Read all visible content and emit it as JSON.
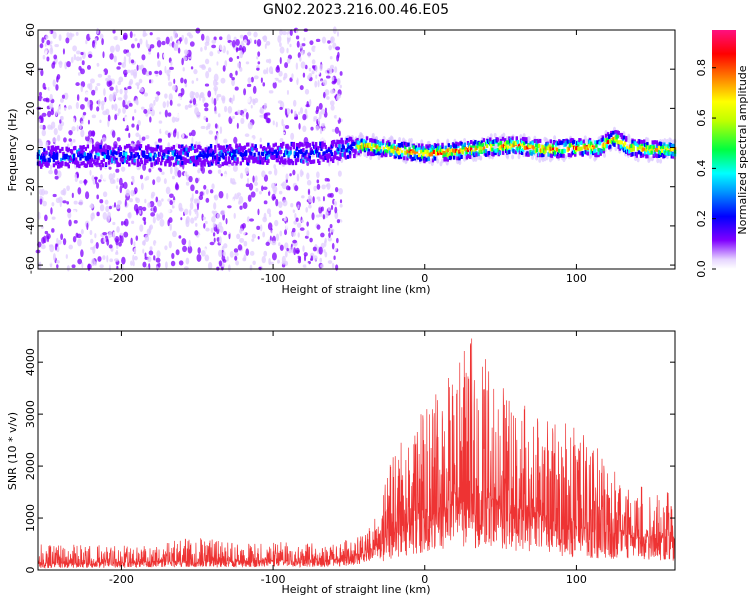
{
  "title": "GN02.2023.216.00.46.E05",
  "chart_data": [
    {
      "type": "heatmap",
      "xlabel": "Height of straight line (km)",
      "ylabel": "Frequency (Hz)",
      "xlim": [
        -255,
        165
      ],
      "ylim": [
        -62,
        60
      ],
      "x_ticks": [
        -200,
        -100,
        0,
        100
      ],
      "x_tick_labels": [
        "-200",
        "-100",
        "0",
        "100"
      ],
      "y_ticks": [
        -60,
        -40,
        -20,
        0,
        20,
        40,
        60
      ],
      "y_tick_labels": [
        "-60",
        "-40",
        "-20",
        "0",
        "20",
        "40",
        "60"
      ],
      "colorbar": {
        "label": "Normalized spectral amplitude",
        "range": [
          0,
          0.95
        ],
        "ticks": [
          0,
          0.2,
          0.4,
          0.6,
          0.8
        ],
        "tick_labels": [
          "0.0",
          "0.2",
          "0.4",
          "0.6",
          "0.8"
        ]
      },
      "ridge_center_hz": {
        "x": [
          -255,
          -200,
          -150,
          -100,
          -70,
          -60,
          -50,
          -40,
          -20,
          0,
          20,
          40,
          60,
          80,
          100,
          115,
          125,
          135,
          150,
          165
        ],
        "y": [
          -5,
          -4,
          -4,
          -3,
          -3,
          -2,
          0,
          1,
          -1,
          -3,
          -2,
          0,
          1,
          -1,
          0,
          0,
          5,
          0,
          -1,
          -1
        ]
      },
      "noise_region_x": [
        -255,
        -55
      ]
    },
    {
      "type": "line",
      "color": "#ee3333",
      "xlabel": "Height of straight line (km)",
      "ylabel": "SNR (10 * v/v)",
      "xlim": [
        -255,
        165
      ],
      "ylim": [
        0,
        4600
      ],
      "x_ticks": [
        -200,
        -100,
        0,
        100
      ],
      "x_tick_labels": [
        "-200",
        "-100",
        "0",
        "100"
      ],
      "y_ticks": [
        0,
        1000,
        2000,
        3000,
        4000
      ],
      "y_tick_labels": [
        "0",
        "1000",
        "2000",
        "3000",
        "4000"
      ],
      "envelope": {
        "x": [
          -255,
          -220,
          -180,
          -150,
          -120,
          -100,
          -60,
          -40,
          -30,
          -20,
          -10,
          0,
          10,
          20,
          30,
          40,
          50,
          60,
          80,
          100,
          120,
          140,
          165
        ],
        "base": [
          120,
          130,
          150,
          170,
          170,
          180,
          200,
          300,
          500,
          700,
          900,
          1000,
          1100,
          1200,
          1350,
          1400,
          1300,
          1200,
          1000,
          800,
          700,
          600,
          600
        ],
        "peak": [
          500,
          480,
          480,
          650,
          500,
          550,
          500,
          700,
          1200,
          2400,
          2700,
          3100,
          3600,
          3900,
          4500,
          4200,
          3600,
          3300,
          2900,
          2800,
          2200,
          1700,
          1500
        ]
      }
    }
  ]
}
